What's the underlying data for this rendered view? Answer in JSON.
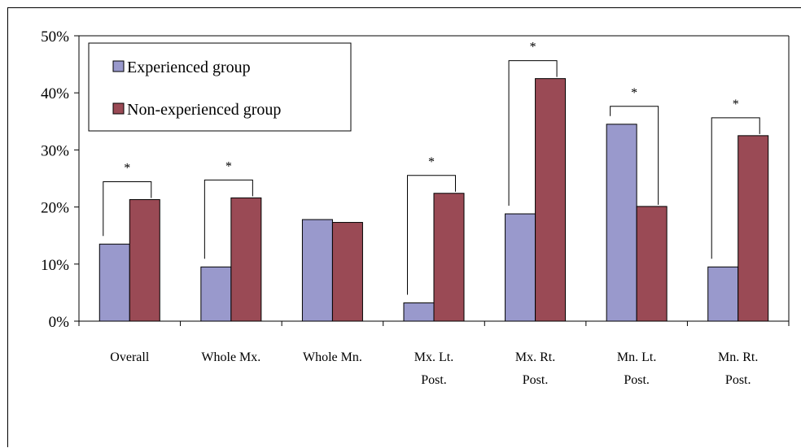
{
  "chart_data": {
    "type": "bar",
    "title": "",
    "xlabel": "",
    "ylabel": "",
    "ylim": [
      0,
      50
    ],
    "y_ticks": [
      "0%",
      "10%",
      "20%",
      "30%",
      "40%",
      "50%"
    ],
    "y_tick_values": [
      0,
      10,
      20,
      30,
      40,
      50
    ],
    "categories": [
      [
        "Overall"
      ],
      [
        "Whole Mx."
      ],
      [
        "Whole Mn."
      ],
      [
        "Mx. Lt.",
        "Post."
      ],
      [
        "Mx. Rt.",
        "Post."
      ],
      [
        "Mn. Lt.",
        "Post."
      ],
      [
        "Mn. Rt.",
        "Post."
      ]
    ],
    "series": [
      {
        "name": "Experienced group",
        "color": "#9999cc",
        "values": [
          13.5,
          9.5,
          17.8,
          3.2,
          18.8,
          34.5,
          9.5
        ]
      },
      {
        "name": "Non-experienced group",
        "color": "#9a4a55",
        "values": [
          21.3,
          21.6,
          17.3,
          22.4,
          42.5,
          20.1,
          32.5
        ]
      }
    ],
    "significance": [
      "*",
      "*",
      "",
      "*",
      "*",
      "*",
      "*"
    ],
    "legend_position": "top-left",
    "grid": false
  }
}
